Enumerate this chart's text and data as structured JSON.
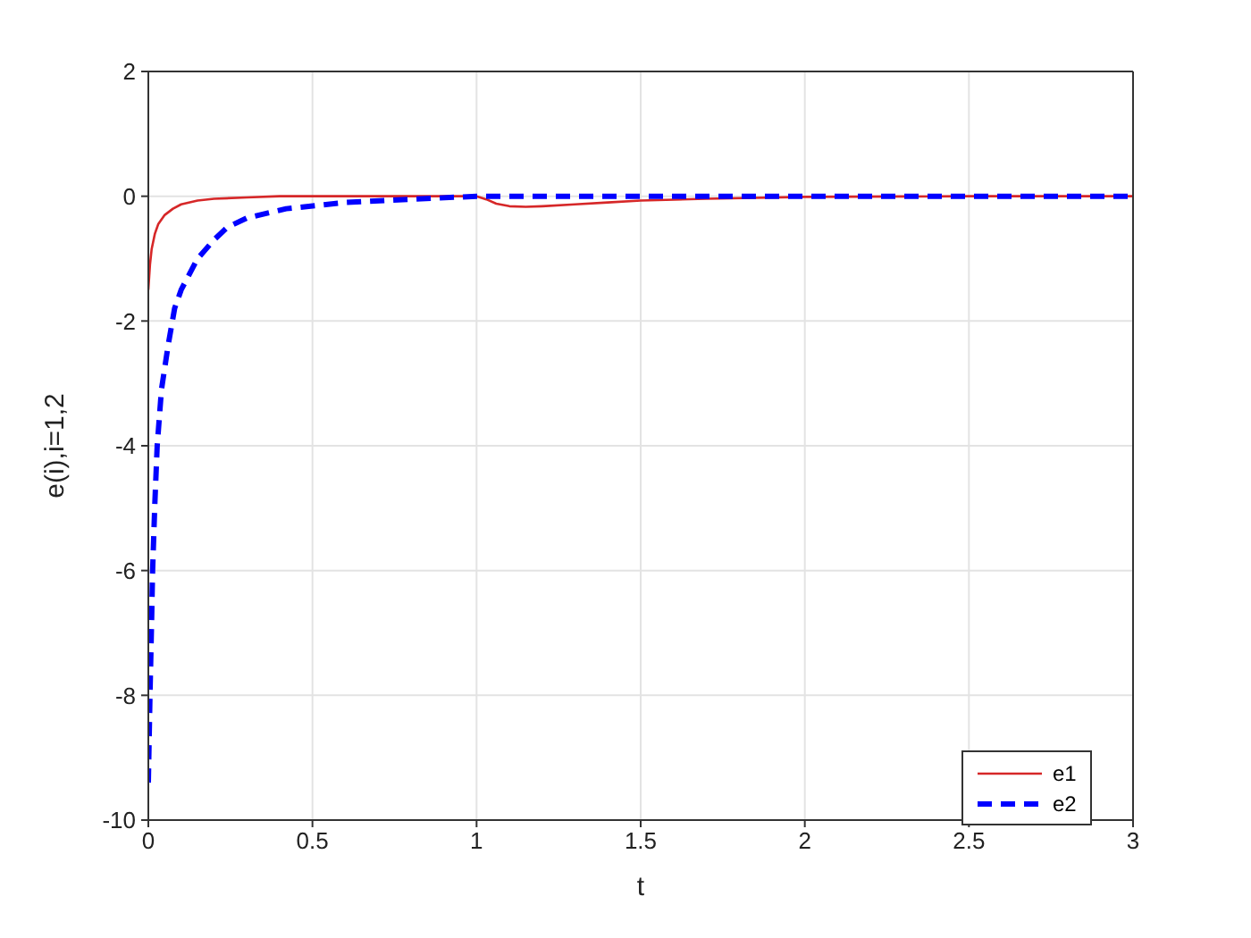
{
  "chart_data": {
    "type": "line",
    "xlabel": "t",
    "ylabel": "e(i),i=1,2",
    "xlim": [
      0,
      3
    ],
    "ylim": [
      -10,
      2
    ],
    "xticks": [
      0,
      0.5,
      1,
      1.5,
      2,
      2.5,
      3
    ],
    "yticks": [
      -10,
      -8,
      -6,
      -4,
      -2,
      0,
      2
    ],
    "grid": true,
    "legend": "bottom right",
    "series": [
      {
        "name": "e1",
        "color": "#d62728",
        "line_style": "solid",
        "x": [
          0,
          0.005,
          0.01,
          0.02,
          0.03,
          0.05,
          0.075,
          0.1,
          0.15,
          0.2,
          0.3,
          0.4,
          0.6,
          0.8,
          1,
          1.03,
          1.06,
          1.1,
          1.15,
          1.2,
          1.3,
          1.4,
          1.5,
          1.7,
          2,
          2.5,
          3
        ],
        "values": [
          -1.5,
          -1.1,
          -0.85,
          -0.6,
          -0.45,
          -0.3,
          -0.2,
          -0.13,
          -0.07,
          -0.04,
          -0.02,
          0,
          0,
          0,
          0,
          -0.05,
          -0.12,
          -0.16,
          -0.17,
          -0.16,
          -0.13,
          -0.1,
          -0.07,
          -0.04,
          -0.01,
          0,
          0
        ]
      },
      {
        "name": "e2",
        "color": "#0000ff",
        "line_style": "dashed",
        "x": [
          0,
          0.005,
          0.01,
          0.013,
          0.02,
          0.027,
          0.04,
          0.06,
          0.08,
          0.1,
          0.15,
          0.2,
          0.24,
          0.3,
          0.42,
          0.6,
          0.8,
          1,
          1.5,
          2,
          2.5,
          3
        ],
        "values": [
          -9.4,
          -8,
          -6.8,
          -6,
          -4.9,
          -4,
          -3.1,
          -2.4,
          -1.8,
          -1.5,
          -1,
          -0.7,
          -0.5,
          -0.35,
          -0.2,
          -0.1,
          -0.05,
          0,
          0,
          0,
          0,
          0
        ]
      }
    ]
  }
}
